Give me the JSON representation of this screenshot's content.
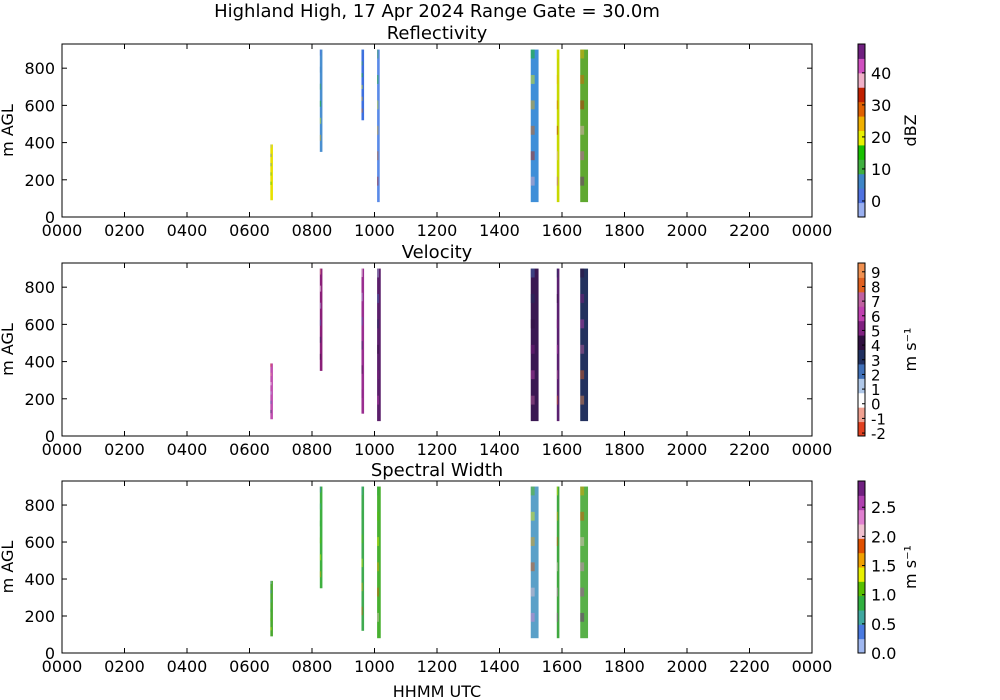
{
  "figure": {
    "title": "Highland High, 17 Apr 2024 Range Gate = 30.0m",
    "xlabel": "HHMM UTC"
  },
  "chart_data": [
    {
      "type": "heatmap",
      "title": "Reflectivity",
      "ylabel": "m AGL",
      "xlim": [
        0,
        24
      ],
      "ylim": [
        0,
        930
      ],
      "xticks": [
        "0000",
        "0200",
        "0400",
        "0600",
        "0800",
        "1000",
        "1200",
        "1400",
        "1600",
        "1800",
        "2000",
        "2200",
        "0000"
      ],
      "yticks": [
        0,
        200,
        400,
        600,
        800
      ],
      "colorbar": {
        "label": "dBZ",
        "ticks": [
          "0",
          "10",
          "20",
          "30",
          "40"
        ],
        "tick_values": [
          0,
          10,
          20,
          30,
          40
        ],
        "range": [
          -5,
          49
        ]
      },
      "echo_columns": [
        {
          "start_hhmm": "0640",
          "end_hhmm": "0645",
          "bottom_m": 90,
          "top_m": 390,
          "color": "#e8e000"
        },
        {
          "start_hhmm": "0815",
          "end_hhmm": "0820",
          "bottom_m": 350,
          "top_m": 900,
          "color": "#4a8fd0"
        },
        {
          "start_hhmm": "0935",
          "end_hhmm": "0940",
          "bottom_m": 520,
          "top_m": 900,
          "color": "#3d6fe0"
        },
        {
          "start_hhmm": "1005",
          "end_hhmm": "1010",
          "bottom_m": 80,
          "top_m": 900,
          "color": "#5a8ae8"
        },
        {
          "start_hhmm": "1500",
          "end_hhmm": "1515",
          "bottom_m": 80,
          "top_m": 900,
          "color": "#3f8fd8"
        },
        {
          "start_hhmm": "1550",
          "end_hhmm": "1555",
          "bottom_m": 80,
          "top_m": 900,
          "color": "#c8d800"
        },
        {
          "start_hhmm": "1635",
          "end_hhmm": "1650",
          "bottom_m": 80,
          "top_m": 900,
          "color": "#5fa830"
        }
      ]
    },
    {
      "type": "heatmap",
      "title": "Velocity",
      "ylabel": "m AGL",
      "xlim": [
        0,
        24
      ],
      "ylim": [
        0,
        930
      ],
      "xticks": [
        "0000",
        "0200",
        "0400",
        "0600",
        "0800",
        "1000",
        "1200",
        "1400",
        "1600",
        "1800",
        "2000",
        "2200",
        "0000"
      ],
      "yticks": [
        0,
        200,
        400,
        600,
        800
      ],
      "colorbar": {
        "label": "m s⁻¹",
        "ticks": [
          "-2",
          "-1",
          "0",
          "1",
          "2",
          "3",
          "4",
          "5",
          "6",
          "7",
          "8",
          "9"
        ],
        "tick_values": [
          -2,
          -1,
          0,
          1,
          2,
          3,
          4,
          5,
          6,
          7,
          8,
          9
        ],
        "range": [
          -2.2,
          9.6
        ]
      },
      "echo_columns": [
        {
          "start_hhmm": "0640",
          "end_hhmm": "0645",
          "bottom_m": 90,
          "top_m": 390,
          "color": "#c050b0"
        },
        {
          "start_hhmm": "0815",
          "end_hhmm": "0820",
          "bottom_m": 350,
          "top_m": 900,
          "color": "#8a1f78"
        },
        {
          "start_hhmm": "0935",
          "end_hhmm": "0940",
          "bottom_m": 120,
          "top_m": 900,
          "color": "#9a2e90"
        },
        {
          "start_hhmm": "1005",
          "end_hhmm": "1012",
          "bottom_m": 80,
          "top_m": 900,
          "color": "#5a1e6a"
        },
        {
          "start_hhmm": "1500",
          "end_hhmm": "1515",
          "bottom_m": 80,
          "top_m": 900,
          "color": "#3a1852"
        },
        {
          "start_hhmm": "1550",
          "end_hhmm": "1555",
          "bottom_m": 80,
          "top_m": 900,
          "color": "#5a2070"
        },
        {
          "start_hhmm": "1635",
          "end_hhmm": "1650",
          "bottom_m": 80,
          "top_m": 900,
          "color": "#23315e"
        }
      ]
    },
    {
      "type": "heatmap",
      "title": "Spectral Width",
      "ylabel": "m AGL",
      "xlim": [
        0,
        24
      ],
      "ylim": [
        0,
        930
      ],
      "xticks": [
        "0000",
        "0200",
        "0400",
        "0600",
        "0800",
        "1000",
        "1200",
        "1400",
        "1600",
        "1800",
        "2000",
        "2200",
        "0000"
      ],
      "yticks": [
        0,
        200,
        400,
        600,
        800
      ],
      "colorbar": {
        "label": "m s⁻¹",
        "ticks": [
          "0.0",
          "0.5",
          "1.0",
          "1.5",
          "2.0",
          "2.5"
        ],
        "tick_values": [
          0,
          0.5,
          1,
          1.5,
          2,
          2.5
        ],
        "range": [
          0,
          2.95
        ]
      },
      "echo_columns": [
        {
          "start_hhmm": "0640",
          "end_hhmm": "0645",
          "bottom_m": 90,
          "top_m": 390,
          "color": "#4aa830"
        },
        {
          "start_hhmm": "0815",
          "end_hhmm": "0820",
          "bottom_m": 350,
          "top_m": 900,
          "color": "#3fb040"
        },
        {
          "start_hhmm": "0935",
          "end_hhmm": "0940",
          "bottom_m": 120,
          "top_m": 900,
          "color": "#3faa50"
        },
        {
          "start_hhmm": "1005",
          "end_hhmm": "1012",
          "bottom_m": 80,
          "top_m": 900,
          "color": "#48b030"
        },
        {
          "start_hhmm": "1500",
          "end_hhmm": "1515",
          "bottom_m": 80,
          "top_m": 900,
          "color": "#5aa0c8"
        },
        {
          "start_hhmm": "1550",
          "end_hhmm": "1555",
          "bottom_m": 80,
          "top_m": 900,
          "color": "#40a840"
        },
        {
          "start_hhmm": "1635",
          "end_hhmm": "1650",
          "bottom_m": 80,
          "top_m": 900,
          "color": "#58b048"
        }
      ]
    }
  ],
  "colormaps": {
    "reflectivity": [
      "#9ab0f0",
      "#4f72e0",
      "#3f86c8",
      "#40b040",
      "#18c000",
      "#e8f000",
      "#f0b000",
      "#e06000",
      "#c02000",
      "#f0b0c8",
      "#d050c0",
      "#702080"
    ],
    "velocity": [
      "#e04020",
      "#f0a090",
      "#ffffff",
      "#b0c8e8",
      "#4070b8",
      "#203060",
      "#301040",
      "#802080",
      "#c040b0",
      "#c060a0",
      "#e06020",
      "#f09050"
    ],
    "spectral_width": [
      "#a0b8f0",
      "#4a7ae0",
      "#40a8a0",
      "#30b040",
      "#58c000",
      "#e8f000",
      "#f0a000",
      "#e05000",
      "#f0c0d0",
      "#e080d0",
      "#b040b0",
      "#702080"
    ]
  }
}
